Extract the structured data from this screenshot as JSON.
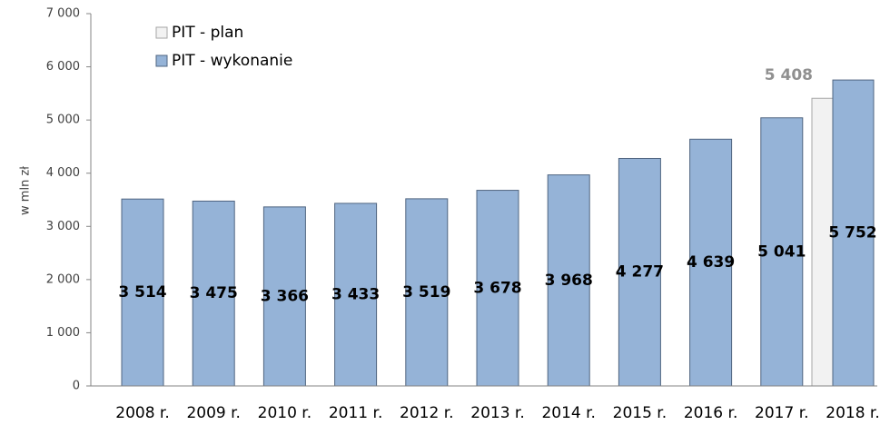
{
  "chart_data": {
    "type": "bar",
    "ylabel": "w mln zł",
    "categories": [
      "2008 r.",
      "2009 r.",
      "2010 r.",
      "2011 r.",
      "2012 r.",
      "2013 r.",
      "2014 r.",
      "2015 r.",
      "2016 r.",
      "2017 r.",
      "2018 r."
    ],
    "series": [
      {
        "name": "PIT - plan",
        "color": "#f2f2f2",
        "values": [
          null,
          null,
          null,
          null,
          null,
          null,
          null,
          null,
          null,
          null,
          5408
        ],
        "value_labels": [
          null,
          null,
          null,
          null,
          null,
          null,
          null,
          null,
          null,
          null,
          "5 408"
        ]
      },
      {
        "name": "PIT - wykonanie",
        "color": "#95b3d7",
        "values": [
          3514,
          3475,
          3366,
          3433,
          3519,
          3678,
          3968,
          4277,
          4639,
          5041,
          5752
        ],
        "value_labels": [
          "3 514",
          "3 475",
          "3 366",
          "3 433",
          "3 519",
          "3 678",
          "3 968",
          "4 277",
          "4 639",
          "5 041",
          "5 752"
        ]
      }
    ],
    "ylim": [
      0,
      7000
    ],
    "yticks": [
      0,
      {
        "value": 1000,
        "label": "1 000"
      },
      {
        "value": 2000,
        "label": "2 000"
      },
      {
        "value": 3000,
        "label": "3 000"
      },
      {
        "value": 4000,
        "label": "4 000"
      },
      {
        "value": 5000,
        "label": "5 000"
      },
      {
        "value": 6000,
        "label": "6 000"
      },
      {
        "value": 7000,
        "label": "7 000"
      }
    ],
    "grid": false
  }
}
